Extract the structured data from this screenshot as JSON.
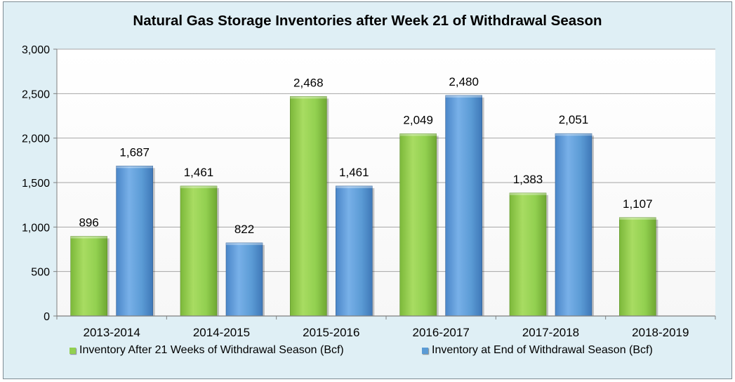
{
  "chart_data": {
    "type": "bar",
    "title": "Natural Gas Storage Inventories after Week 21 of Withdrawal Season",
    "xlabel": "",
    "ylabel": "",
    "categories": [
      "2013-2014",
      "2014-2015",
      "2015-2016",
      "2016-2017",
      "2017-2018",
      "2018-2019"
    ],
    "series": [
      {
        "name": "Inventory After 21 Weeks of Withdrawal Season (Bcf)",
        "color": "#92d050",
        "values": [
          896,
          1461,
          2468,
          2049,
          1383,
          1107
        ]
      },
      {
        "name": "Inventory at End of Withdrawal Season (Bcf)",
        "color": "#5b9bd5",
        "values": [
          1687,
          822,
          1461,
          2480,
          2051,
          null
        ]
      }
    ],
    "ylim": [
      0,
      3000
    ],
    "yticks": [
      0,
      500,
      1000,
      1500,
      2000,
      2500,
      3000
    ],
    "ytick_labels": [
      "0",
      "500",
      "1,000",
      "1,500",
      "2,000",
      "2,500",
      "3,000"
    ],
    "data_labels": [
      [
        "896",
        "1,461",
        "2,468",
        "2,049",
        "1,383",
        "1,107"
      ],
      [
        "1,687",
        "822",
        "1,461",
        "2,480",
        "2,051",
        ""
      ]
    ],
    "grid": true,
    "legend_position": "bottom"
  }
}
